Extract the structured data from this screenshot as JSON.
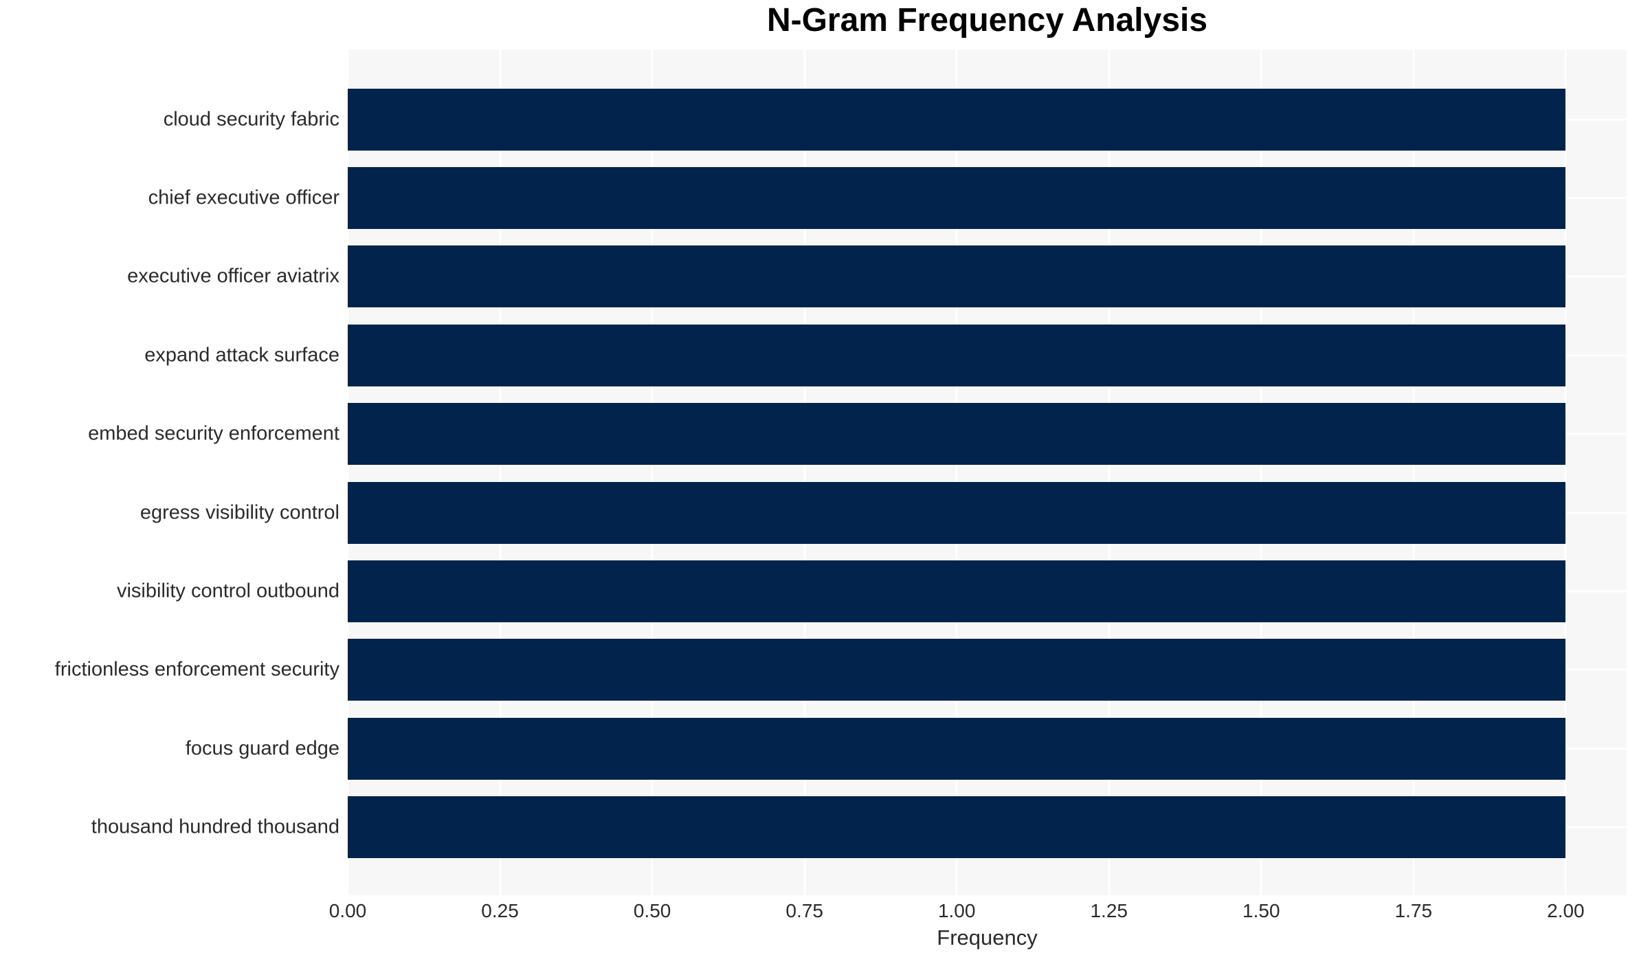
{
  "chart_data": {
    "type": "bar",
    "orientation": "horizontal",
    "title": "N-Gram Frequency Analysis",
    "xlabel": "Frequency",
    "ylabel": "",
    "categories": [
      "cloud security fabric",
      "chief executive officer",
      "executive officer aviatrix",
      "expand attack surface",
      "embed security enforcement",
      "egress visibility control",
      "visibility control outbound",
      "frictionless enforcement security",
      "focus guard edge",
      "thousand hundred thousand"
    ],
    "values": [
      2,
      2,
      2,
      2,
      2,
      2,
      2,
      2,
      2,
      2
    ],
    "xlim": [
      0,
      2.1
    ],
    "xticks": [
      0,
      0.25,
      0.5,
      0.75,
      1,
      1.25,
      1.5,
      1.75,
      2
    ],
    "xtick_labels": [
      "0.00",
      "0.25",
      "0.50",
      "0.75",
      "1.00",
      "1.25",
      "1.50",
      "1.75",
      "2.00"
    ],
    "grid": true,
    "legend": false,
    "colors": {
      "bar": "#02234c",
      "plot_bg": "#f7f7f7",
      "grid": "#ffffff",
      "text": "#2b2b2b",
      "title": "#000000",
      "page_bg": "#ffffff"
    }
  }
}
